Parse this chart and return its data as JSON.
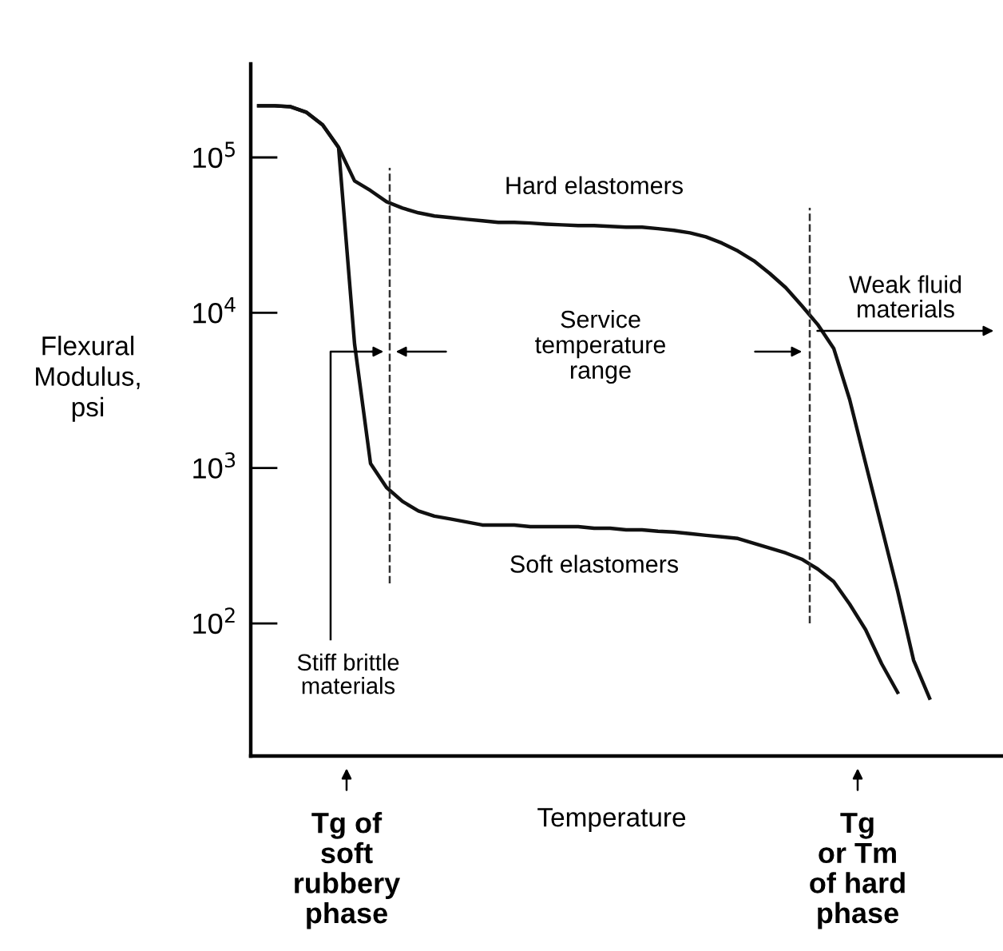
{
  "chart_data": {
    "type": "line",
    "categories": [
      null,
      null,
      null,
      null,
      null,
      null,
      null,
      null,
      null,
      null,
      null,
      null,
      null,
      null,
      null,
      null,
      null,
      null,
      null,
      null,
      null,
      null,
      null,
      null,
      null,
      null,
      null,
      null,
      null,
      null,
      null,
      null,
      null,
      null,
      null,
      null,
      null,
      null,
      null,
      null,
      null,
      null,
      null,
      null,
      null,
      null,
      null
    ],
    "series": [
      {
        "name": "Hard elastomers",
        "color": "#111111",
        "values": [
          215000,
          215000,
          212000,
          195000,
          162000,
          116000,
          70600,
          61200,
          51900,
          47200,
          44000,
          42000,
          41000,
          40000,
          39100,
          38200,
          38200,
          37800,
          37200,
          36800,
          36400,
          36400,
          36000,
          35600,
          35600,
          34800,
          33900,
          32700,
          30800,
          28100,
          25000,
          21600,
          17900,
          14500,
          11100,
          8400,
          5900,
          2760,
          1070,
          417,
          162,
          58,
          33,
          null,
          null,
          null,
          null
        ]
      },
      {
        "name": "Soft elastomers",
        "color": "#111111",
        "values": [
          215000,
          215000,
          212000,
          195000,
          162000,
          116000,
          6300,
          1070,
          750,
          610,
          530,
          490,
          470,
          450,
          430,
          430,
          430,
          420,
          420,
          420,
          420,
          410,
          410,
          400,
          400,
          392,
          387,
          378,
          369,
          361,
          352,
          328,
          305,
          284,
          259,
          224,
          186,
          133,
          91,
          55,
          36,
          null,
          null,
          null,
          null,
          null,
          null
        ]
      }
    ],
    "log": "y",
    "ylim": [
      14,
      400000
    ],
    "yticks": [
      {
        "value": 100,
        "label": "10$^{2}$"
      },
      {
        "value": 1000,
        "label": "10$^{3}$"
      },
      {
        "value": 10000,
        "label": "10$^{4}$"
      },
      {
        "value": 100000,
        "label": "10$^{5}$"
      }
    ],
    "xlabel": "Temperature",
    "ylabel": "Flexural\nModulus,\npsi",
    "tick_labels": "y",
    "line_style": "solid",
    "marker": "none",
    "grid": false,
    "legend": false,
    "annotations": [
      "Service\ntemperature\nrange",
      "Stiff brittle\nmaterials",
      "Weak fluid\nmaterials",
      "Tg of\nsoft\nrubbery\nphase",
      "Tg\nor Tm\nof hard\nphase"
    ]
  }
}
